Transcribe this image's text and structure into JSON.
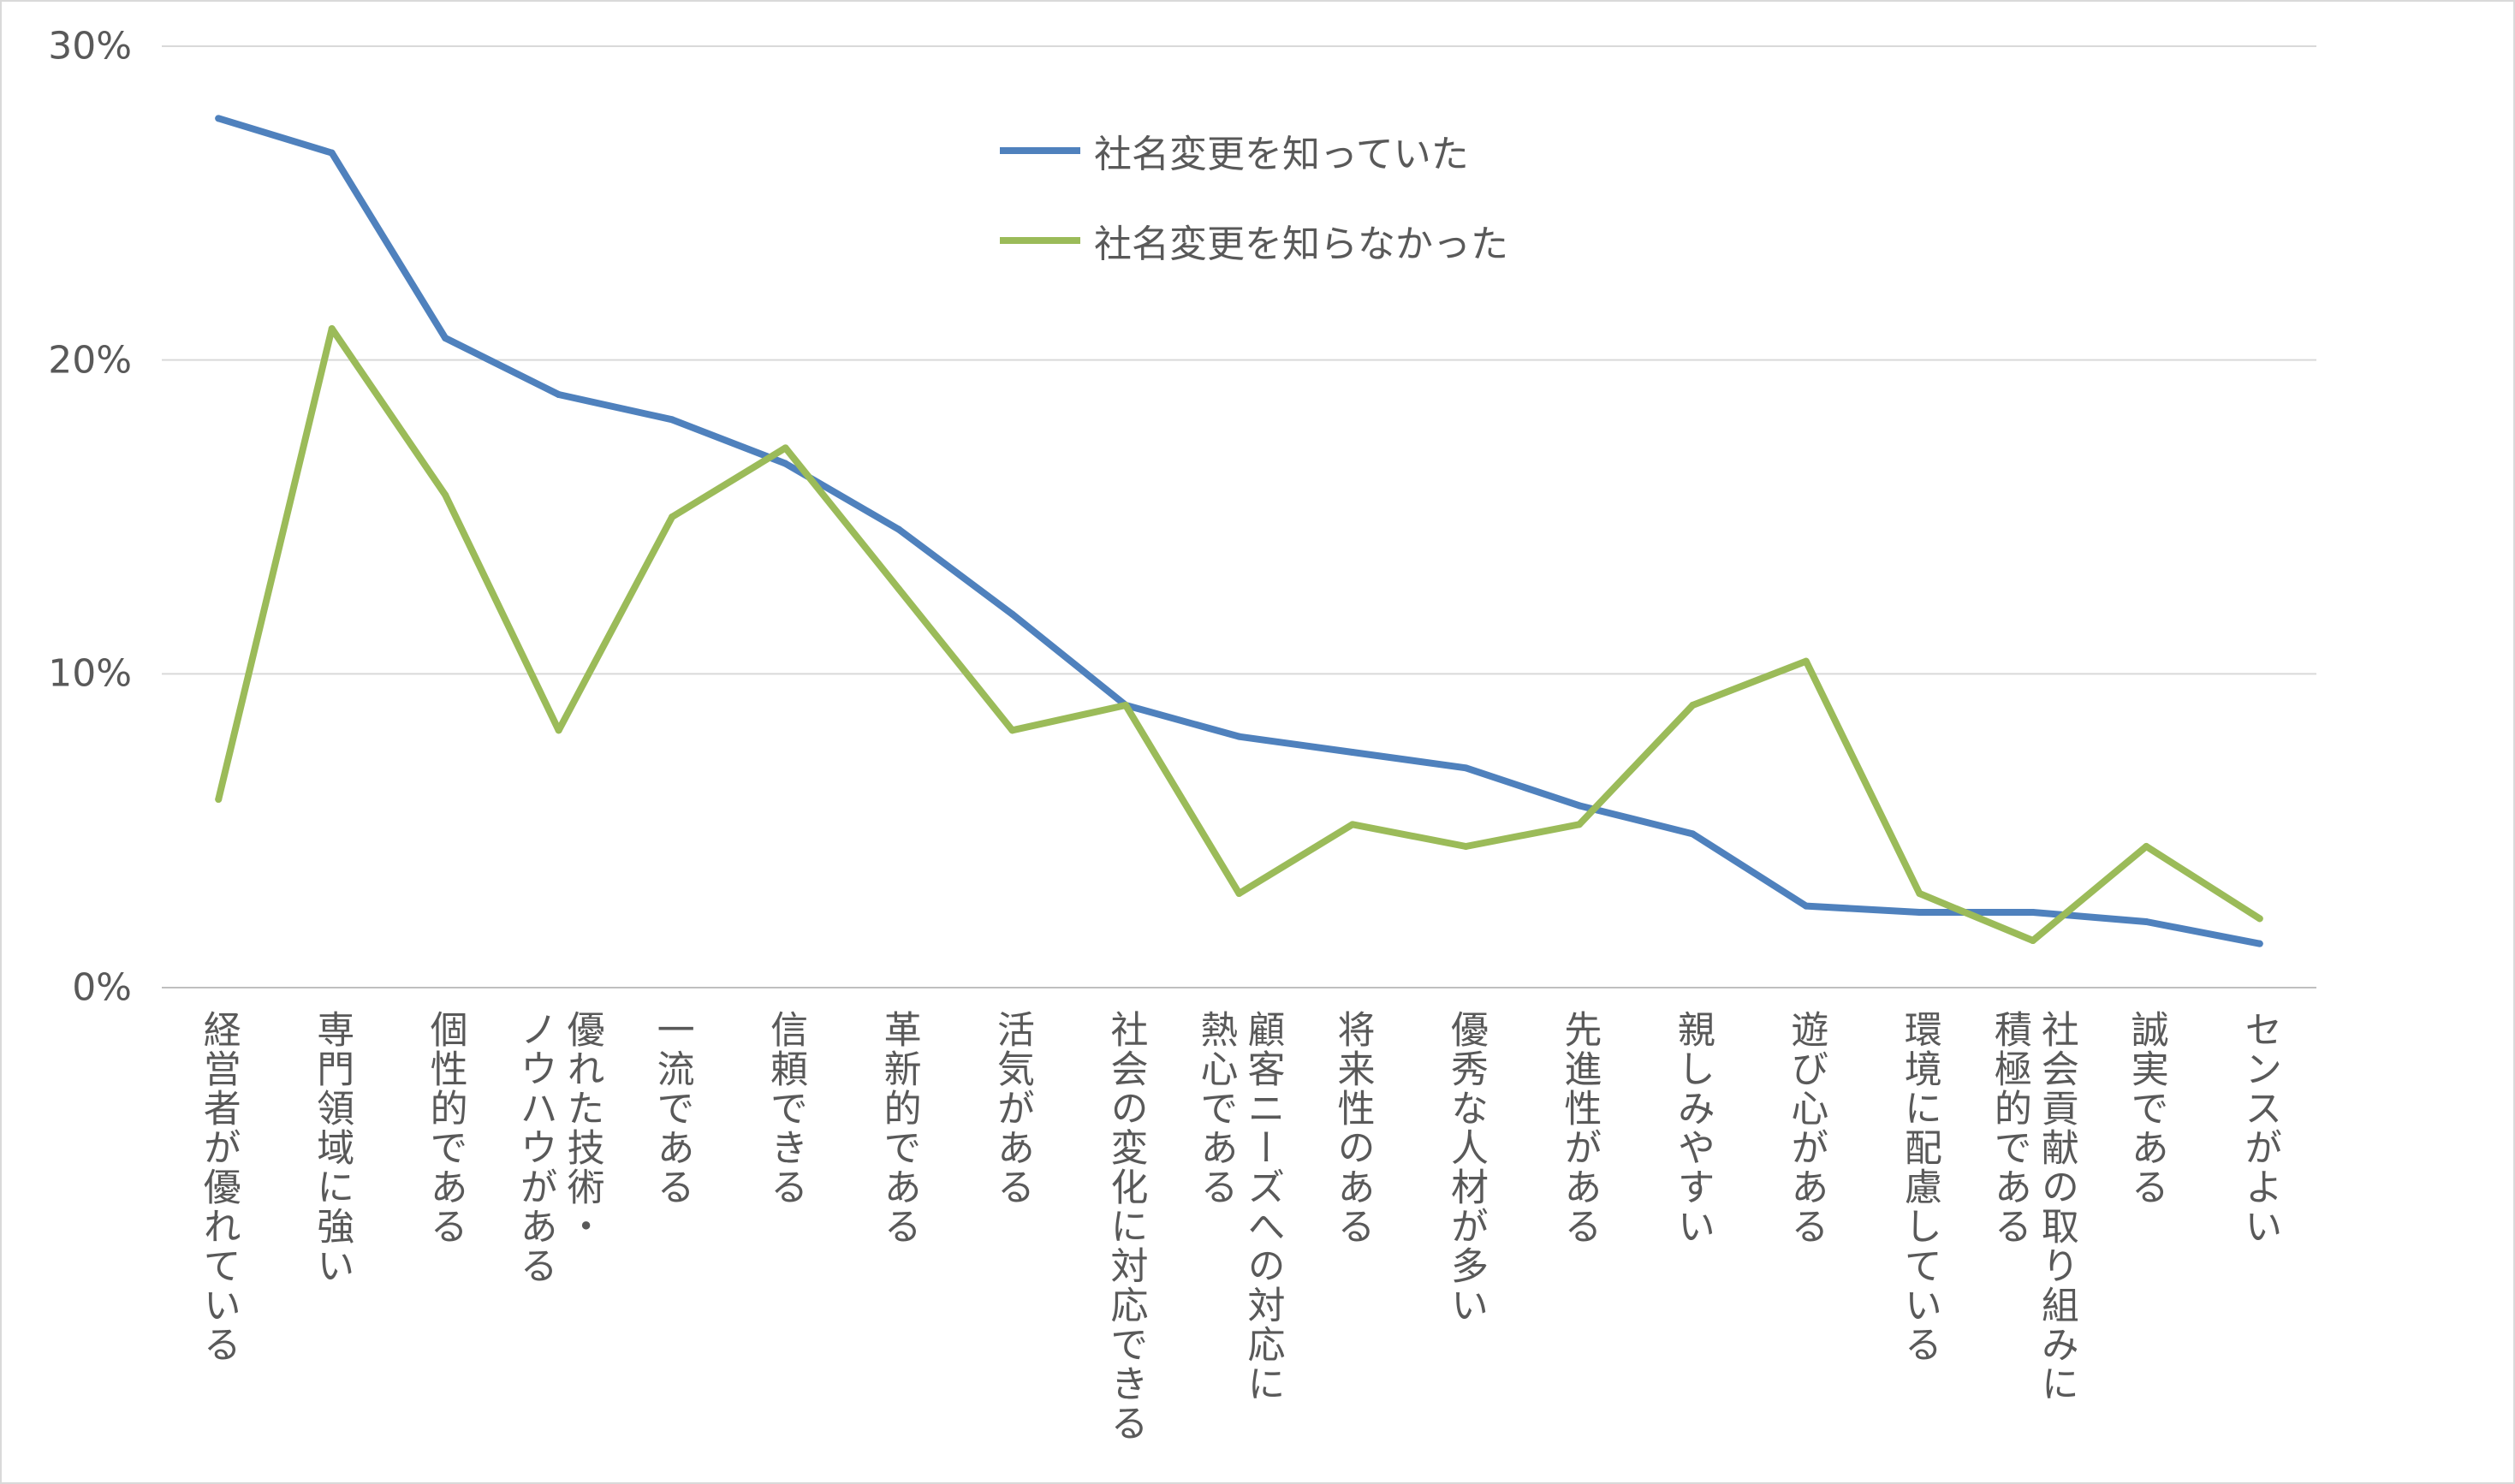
{
  "chart_data": {
    "type": "line",
    "categories": [
      "経営者が優れている",
      "専門領域に強い",
      "個性的である",
      "優れた技術・\nノウハウがある",
      "一流である",
      "信頼できる",
      "革新的である",
      "活気がある",
      "社会の変化に対応できる",
      "顧客ニーズへの対応に\n熱心である",
      "将来性のある",
      "優秀な人材が多い",
      "先進性がある",
      "親しみやすい",
      "遊び心がある",
      "環境に配慮している",
      "社会貢献の取り組みに\n積極的である",
      "誠実である",
      "センスがよい"
    ],
    "series": [
      {
        "name": "社名変更を知っていた",
        "color": "#4f81bd",
        "values": [
          27.7,
          26.6,
          20.7,
          18.9,
          18.1,
          16.7,
          14.6,
          11.9,
          9.0,
          8.0,
          7.5,
          7.0,
          5.8,
          4.9,
          2.6,
          2.4,
          2.4,
          2.1,
          1.4
        ]
      },
      {
        "name": "社名変更を知らなかった",
        "color": "#9bbb59",
        "values": [
          6.0,
          21.0,
          15.7,
          8.2,
          15.0,
          17.2,
          12.7,
          8.2,
          9.0,
          3.0,
          5.2,
          4.5,
          5.2,
          9.0,
          10.4,
          3.0,
          1.5,
          4.5,
          2.2
        ]
      }
    ],
    "yticks": [
      "0%",
      "10%",
      "20%",
      "30%"
    ],
    "ylim": [
      0,
      30
    ],
    "grid": true,
    "legend": "top-center"
  }
}
